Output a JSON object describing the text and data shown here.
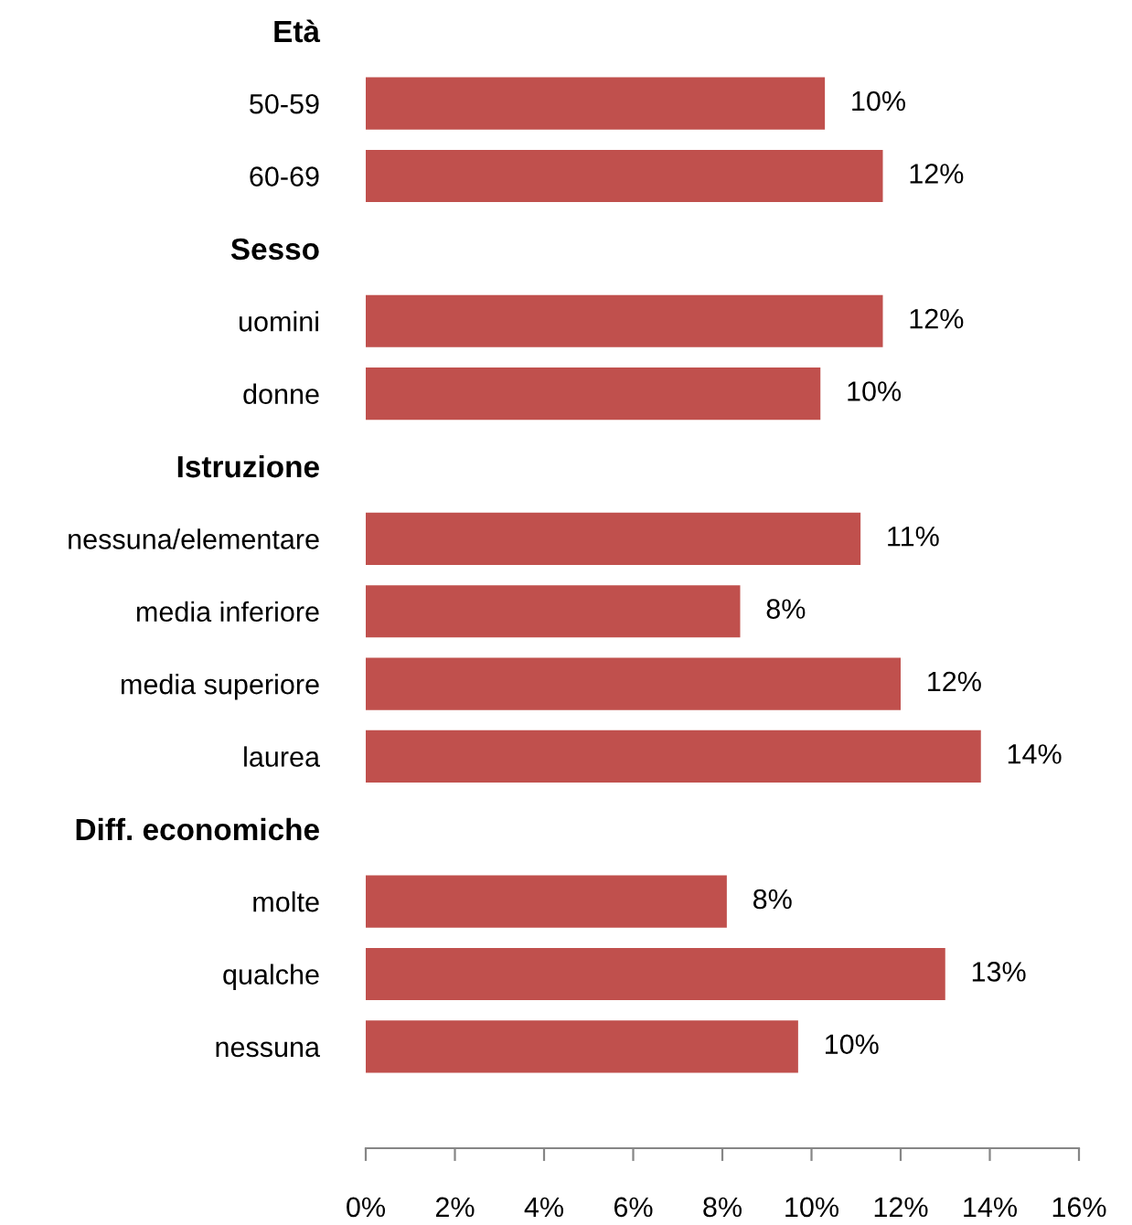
{
  "chart_data": {
    "type": "bar",
    "orientation": "horizontal",
    "categories": [
      "Età",
      "50-59",
      "60-69",
      "Sesso",
      "uomini",
      "donne",
      "Istruzione",
      "nessuna/elementare",
      "media inferiore",
      "media superiore",
      "laurea",
      "Diff. economiche",
      "molte",
      "qualche",
      "nessuna"
    ],
    "values": [
      null,
      10.3,
      11.6,
      null,
      11.6,
      10.2,
      null,
      11.1,
      8.4,
      12.0,
      13.8,
      null,
      8.1,
      13.0,
      9.7
    ],
    "value_labels": [
      null,
      "10%",
      "12%",
      null,
      "12%",
      "10%",
      null,
      "11%",
      "8%",
      "12%",
      "14%",
      null,
      "8%",
      "13%",
      "10%"
    ],
    "color": "#c0504d",
    "xlim": [
      0,
      16
    ],
    "xticks": [
      {
        "value": 0,
        "label": "0%"
      },
      {
        "value": 2,
        "label": "2%"
      },
      {
        "value": 4,
        "label": "4%"
      },
      {
        "value": 6,
        "label": "6%"
      },
      {
        "value": 8,
        "label": "8%"
      },
      {
        "value": 10,
        "label": "10%"
      },
      {
        "value": 12,
        "label": "12%"
      },
      {
        "value": 14,
        "label": "14%"
      },
      {
        "value": 16,
        "label": "16%"
      }
    ],
    "grid": false,
    "legend": false
  }
}
